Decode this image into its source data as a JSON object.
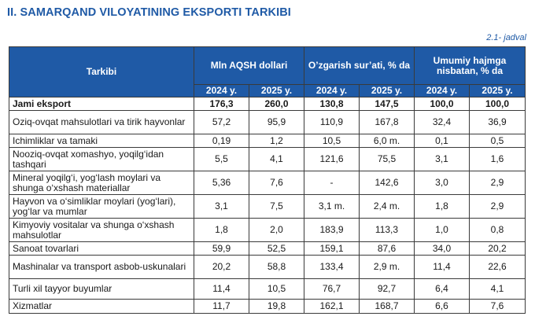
{
  "title": "II. SAMARQAND VILOYATINING EKSPORTI TARKIBI",
  "table_ref": "2.1- jadval",
  "table": {
    "header": {
      "tarkibi": "Tarkibi",
      "groups": [
        "Mln AQSH dollari",
        "O’zgarish sur’ati, % da",
        "Umumiy hajmga nisbatan, % da"
      ],
      "years": [
        "2024 y.",
        "2025 y.",
        "2024 y.",
        "2025 y.",
        "2024 y.",
        "2025 y."
      ]
    },
    "rows": [
      {
        "name": "Jami eksport",
        "values": [
          "176,3",
          "260,0",
          "130,8",
          "147,5",
          "100,0",
          "100,0"
        ]
      },
      {
        "name": "Oziq-ovqat mahsulotlari va tirik hayvonlar",
        "values": [
          "57,2",
          "95,9",
          "110,9",
          "167,8",
          "32,4",
          "36,9"
        ]
      },
      {
        "name": "Ichimliklar va tamaki",
        "values": [
          "0,19",
          "1,2",
          "10,5",
          "6,0 m.",
          "0,1",
          "0,5"
        ]
      },
      {
        "name": "Nooziq-ovqat xomashyo, yoqilg‘idan tashqari",
        "values": [
          "5,5",
          "4,1",
          "121,6",
          "75,5",
          "3,1",
          "1,6"
        ]
      },
      {
        "name": "Mineral yoqilg‘i, yog‘lash moylari va shunga o‘xshash materiallar",
        "values": [
          "5,36",
          "7,6",
          "-",
          "142,6",
          "3,0",
          "2,9"
        ]
      },
      {
        "name": "Hayvon va o‘simliklar moylari (yog‘lari), yog‘lar va mumlar",
        "values": [
          "3,1",
          "7,5",
          "3,1 m.",
          "2,4 m.",
          "1,8",
          "2,9"
        ]
      },
      {
        "name": "Kimyoviy vositalar va shunga o‘xshash mahsulotlar",
        "values": [
          "1,8",
          "2,0",
          "183,9",
          "113,3",
          "1,0",
          "0,8"
        ]
      },
      {
        "name": "Sanoat tovarlari",
        "values": [
          "59,9",
          "52,5",
          "159,1",
          "87,6",
          "34,0",
          "20,2"
        ]
      },
      {
        "name": "Mashinalar va transport asbob-uskunalari",
        "values": [
          "20,2",
          "58,8",
          "133,4",
          "2,9 m.",
          "11,4",
          "22,6"
        ]
      },
      {
        "name": "Turli xil tayyor buyumlar",
        "values": [
          "11,4",
          "10,5",
          "76,7",
          "92,7",
          "6,4",
          "4,1"
        ]
      },
      {
        "name": "Xizmatlar",
        "values": [
          "11,7",
          "19,8",
          "162,1",
          "168,7",
          "6,6",
          "7,6"
        ]
      }
    ]
  }
}
